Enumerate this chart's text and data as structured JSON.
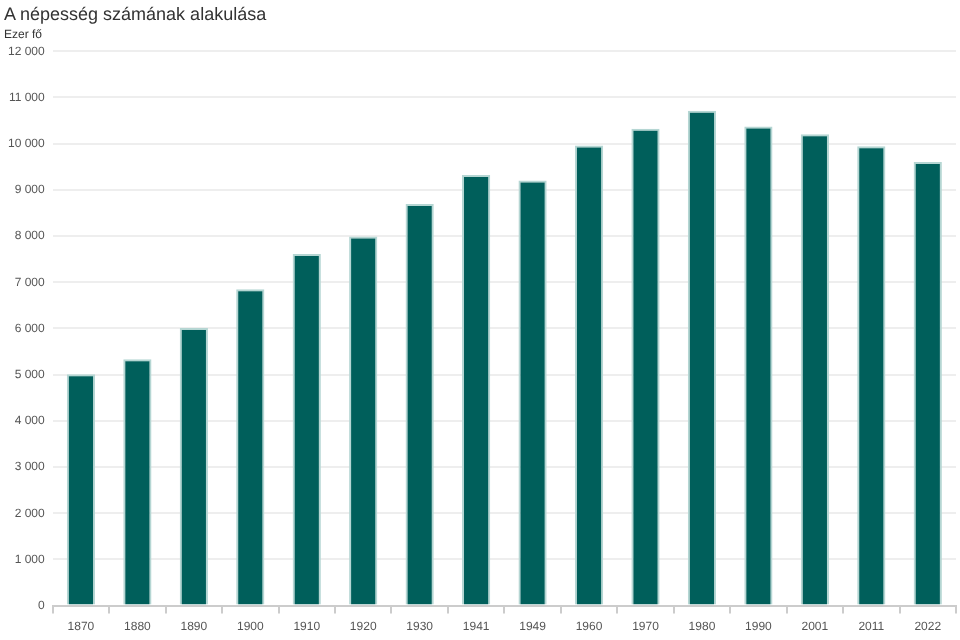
{
  "chart_data": {
    "type": "bar",
    "title": "A népesség számának alakulása",
    "ylabel": "Ezer fő",
    "categories": [
      "1870",
      "1880",
      "1890",
      "1900",
      "1910",
      "1920",
      "1930",
      "1941",
      "1949",
      "1960",
      "1970",
      "1980",
      "1990",
      "2001",
      "2011",
      "2022"
    ],
    "values": [
      5010,
      5330,
      6010,
      6850,
      7610,
      7990,
      8690,
      9320,
      9200,
      9960,
      10320,
      10710,
      10370,
      10200,
      9940,
      9600
    ],
    "color": "#005f5b",
    "ylim": [
      0,
      12000
    ],
    "yticks": [
      {
        "value": 0,
        "label": "0"
      },
      {
        "value": 1000,
        "label": "1 000"
      },
      {
        "value": 2000,
        "label": "2 000"
      },
      {
        "value": 3000,
        "label": "3 000"
      },
      {
        "value": 4000,
        "label": "4 000"
      },
      {
        "value": 5000,
        "label": "5 000"
      },
      {
        "value": 6000,
        "label": "6 000"
      },
      {
        "value": 7000,
        "label": "7 000"
      },
      {
        "value": 8000,
        "label": "8 000"
      },
      {
        "value": 9000,
        "label": "9 000"
      },
      {
        "value": 10000,
        "label": "10 000"
      },
      {
        "value": 11000,
        "label": "11 000"
      },
      {
        "value": 12000,
        "label": "12 000"
      }
    ],
    "grid": "y"
  }
}
